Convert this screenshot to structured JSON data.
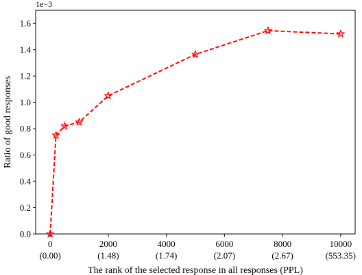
{
  "chart_data": {
    "type": "line",
    "title": "",
    "xlabel": "The rank of the selected response in all responses (PPL)",
    "ylabel": "Ratio of good responses",
    "y_scale_label": "1e−3",
    "xlim": [
      -500,
      10500
    ],
    "ylim": [
      0,
      1.7
    ],
    "grid": false,
    "x_ticks": [
      {
        "value": 0,
        "label": "0",
        "sublabel": "(0.00)"
      },
      {
        "value": 2000,
        "label": "2000",
        "sublabel": "(1.48)"
      },
      {
        "value": 4000,
        "label": "4000",
        "sublabel": "(1.74)"
      },
      {
        "value": 6000,
        "label": "6000",
        "sublabel": "(2.07)"
      },
      {
        "value": 8000,
        "label": "8000",
        "sublabel": "(2.67)"
      },
      {
        "value": 10000,
        "label": "10000",
        "sublabel": "(553.35)"
      }
    ],
    "y_ticks": [
      {
        "value": 0.0,
        "label": "0.0"
      },
      {
        "value": 0.2,
        "label": "0.2"
      },
      {
        "value": 0.4,
        "label": "0.4"
      },
      {
        "value": 0.6,
        "label": "0.6"
      },
      {
        "value": 0.8,
        "label": "0.8"
      },
      {
        "value": 1.0,
        "label": "1.0"
      },
      {
        "value": 1.2,
        "label": "1.2"
      },
      {
        "value": 1.4,
        "label": "1.4"
      },
      {
        "value": 1.6,
        "label": "1.6"
      }
    ],
    "series": [
      {
        "color": "#ff0000",
        "line_style": "dashed",
        "marker": "star",
        "x": [
          0,
          200,
          500,
          1000,
          2000,
          5000,
          7500,
          10000
        ],
        "y": [
          0.0,
          0.75,
          0.82,
          0.85,
          1.05,
          1.365,
          1.545,
          1.52
        ]
      }
    ]
  }
}
